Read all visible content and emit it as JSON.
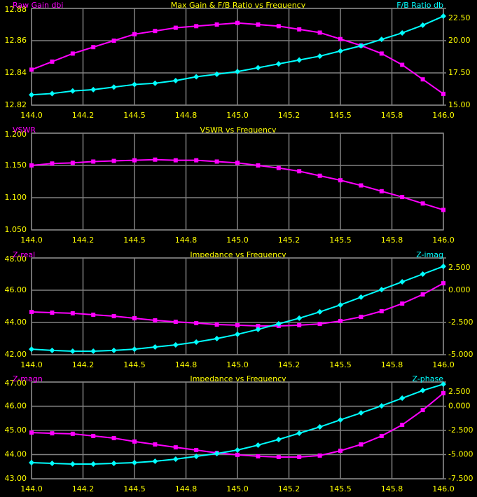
{
  "chart_data": [
    {
      "type": "line",
      "title": "Max Gain & F/B Ratio vs Frequency",
      "x": [
        144,
        144.1,
        144.2,
        144.3,
        144.4,
        144.5,
        144.6,
        144.7,
        144.8,
        144.9,
        145,
        145.1,
        145.2,
        145.3,
        145.4,
        145.5,
        145.6,
        145.7,
        145.8,
        145.9,
        146
      ],
      "xlim": [
        144,
        146
      ],
      "xticks": [
        {
          "value": 144,
          "label": "144.0"
        },
        {
          "value": 144.25,
          "label": "144.2"
        },
        144.5,
        {
          "value": 144.75,
          "label": "144.8"
        },
        {
          "value": 145,
          "label": "145.0"
        },
        {
          "value": 145.25,
          "label": "145.2"
        },
        145.5,
        {
          "value": 145.75,
          "label": "145.8"
        },
        {
          "value": 146,
          "label": "146.0"
        }
      ],
      "ylim": [
        12.82,
        12.88
      ],
      "yticks": [
        12.82,
        12.84,
        12.86,
        12.88
      ],
      "y2lim": [
        15,
        22.5
      ],
      "y2ticks": [
        {
          "value": 15,
          "label": "15.00"
        },
        {
          "value": 17.5,
          "label": "17.50"
        },
        {
          "value": 20,
          "label": "20.00"
        },
        {
          "value": 22.5,
          "label": "22.50"
        }
      ],
      "grid": true,
      "series": [
        {
          "name": "Raw Gain dbi",
          "color": "#ff00ff",
          "marker": "square",
          "values": [
            12.842,
            12.847,
            12.852,
            12.856,
            12.86,
            12.864,
            12.866,
            12.868,
            12.869,
            12.87,
            12.871,
            12.87,
            12.869,
            12.867,
            12.865,
            12.861,
            12.857,
            12.852,
            12.845,
            12.836,
            12.827
          ]
        },
        {
          "name": "F/B Ratio db",
          "color": "#00ffff",
          "marker": "diamond",
          "axis": "y2",
          "values": [
            15.8,
            15.9,
            16.1,
            16.2,
            16.4,
            16.6,
            16.7,
            16.9,
            17.2,
            17.4,
            17.6,
            17.9,
            18.2,
            18.5,
            18.8,
            19.2,
            19.6,
            20.1,
            20.6,
            21.2,
            21.9
          ]
        }
      ]
    },
    {
      "type": "line",
      "title": "VSWR vs Frequency",
      "x": [
        144,
        144.1,
        144.2,
        144.3,
        144.4,
        144.5,
        144.6,
        144.7,
        144.8,
        144.9,
        145,
        145.1,
        145.2,
        145.3,
        145.4,
        145.5,
        145.6,
        145.7,
        145.8,
        145.9,
        146
      ],
      "xlim": [
        144,
        146
      ],
      "xticks": [
        {
          "value": 144,
          "label": "144.0"
        },
        {
          "value": 144.25,
          "label": "144.2"
        },
        144.5,
        {
          "value": 144.75,
          "label": "144.8"
        },
        {
          "value": 145,
          "label": "145.0"
        },
        {
          "value": 145.25,
          "label": "145.2"
        },
        145.5,
        {
          "value": 145.75,
          "label": "145.8"
        },
        {
          "value": 146,
          "label": "146.0"
        }
      ],
      "ylim": [
        1.05,
        1.2
      ],
      "yticks": [
        {
          "value": 1.05,
          "label": "1.050"
        },
        {
          "value": 1.1,
          "label": "1.100"
        },
        {
          "value": 1.15,
          "label": "1.150"
        },
        {
          "value": 1.2,
          "label": "1.200"
        }
      ],
      "grid": true,
      "series": [
        {
          "name": "VSWR",
          "color": "#ff00ff",
          "marker": "square",
          "values": [
            1.15,
            1.153,
            1.154,
            1.156,
            1.157,
            1.158,
            1.159,
            1.158,
            1.158,
            1.156,
            1.154,
            1.15,
            1.146,
            1.141,
            1.134,
            1.127,
            1.119,
            1.11,
            1.101,
            1.091,
            1.081
          ]
        }
      ]
    },
    {
      "type": "line",
      "title": "Impedance vs Frequency",
      "x": [
        144,
        144.1,
        144.2,
        144.3,
        144.4,
        144.5,
        144.6,
        144.7,
        144.8,
        144.9,
        145,
        145.1,
        145.2,
        145.3,
        145.4,
        145.5,
        145.6,
        145.7,
        145.8,
        145.9,
        146
      ],
      "xlim": [
        144,
        146
      ],
      "xticks": [
        {
          "value": 144,
          "label": "144.0"
        },
        {
          "value": 144.25,
          "label": "144.2"
        },
        144.5,
        {
          "value": 144.75,
          "label": "144.8"
        },
        {
          "value": 145,
          "label": "145.0"
        },
        {
          "value": 145.25,
          "label": "145.2"
        },
        145.5,
        {
          "value": 145.75,
          "label": "145.8"
        },
        {
          "value": 146,
          "label": "146.0"
        }
      ],
      "ylim": [
        42,
        48
      ],
      "yticks": [
        {
          "value": 42,
          "label": "42.00"
        },
        {
          "value": 44,
          "label": "44.00"
        },
        {
          "value": 46,
          "label": "46.00"
        },
        {
          "value": 48,
          "label": "48.00"
        }
      ],
      "y2lim": [
        -5,
        2.5
      ],
      "y2ticks": [
        {
          "value": -5,
          "label": "-5.000"
        },
        {
          "value": -2.5,
          "label": "-2.500"
        },
        {
          "value": 0,
          "label": "0.000"
        },
        {
          "value": 2.5,
          "label": "2.500"
        }
      ],
      "grid": true,
      "series": [
        {
          "name": "Z-real",
          "color": "#ff00ff",
          "marker": "square",
          "values": [
            44.65,
            44.61,
            44.57,
            44.48,
            44.39,
            44.26,
            44.13,
            44.04,
            43.96,
            43.87,
            43.83,
            43.78,
            43.78,
            43.83,
            43.91,
            44.09,
            44.35,
            44.7,
            45.17,
            45.74,
            46.43
          ]
        },
        {
          "name": "Z-imag",
          "color": "#00ffff",
          "marker": "diamond",
          "axis": "y2",
          "values": [
            -4.57,
            -4.67,
            -4.73,
            -4.73,
            -4.67,
            -4.57,
            -4.4,
            -4.24,
            -4.02,
            -3.75,
            -3.42,
            -3.04,
            -2.61,
            -2.17,
            -1.68,
            -1.14,
            -0.54,
            0.05,
            0.65,
            1.25,
            1.85
          ]
        }
      ]
    },
    {
      "type": "line",
      "title": "Impedance vs Frequency",
      "x": [
        144,
        144.1,
        144.2,
        144.3,
        144.4,
        144.5,
        144.6,
        144.7,
        144.8,
        144.9,
        145,
        145.1,
        145.2,
        145.3,
        145.4,
        145.5,
        145.6,
        145.7,
        145.8,
        145.9,
        146
      ],
      "xlim": [
        144,
        146
      ],
      "xticks": [
        {
          "value": 144,
          "label": "144.0"
        },
        {
          "value": 144.25,
          "label": "144.2"
        },
        144.5,
        {
          "value": 144.75,
          "label": "144.8"
        },
        {
          "value": 145,
          "label": "145.0"
        },
        {
          "value": 145.25,
          "label": "145.2"
        },
        145.5,
        {
          "value": 145.75,
          "label": "145.8"
        },
        {
          "value": 146,
          "label": "146.0"
        }
      ],
      "ylim": [
        43,
        47
      ],
      "yticks": [
        {
          "value": 43,
          "label": "43.00"
        },
        {
          "value": 44,
          "label": "44.00"
        },
        {
          "value": 45,
          "label": "45.00"
        },
        {
          "value": 46,
          "label": "46.00"
        },
        {
          "value": 47,
          "label": "47.00"
        }
      ],
      "y2lim": [
        -7.5,
        2.5
      ],
      "y2ticks": [
        {
          "value": -7.5,
          "label": "-7.500"
        },
        {
          "value": -5,
          "label": "-5.000"
        },
        {
          "value": -2.5,
          "label": "-2.500"
        },
        {
          "value": 0,
          "label": "0.000"
        },
        {
          "value": 2.5,
          "label": "2.500"
        }
      ],
      "grid": true,
      "series": [
        {
          "name": "Z-magn",
          "color": "#ff00ff",
          "marker": "square",
          "values": [
            44.91,
            44.88,
            44.86,
            44.77,
            44.68,
            44.54,
            44.42,
            44.3,
            44.19,
            44.07,
            43.99,
            43.93,
            43.9,
            43.9,
            43.96,
            44.16,
            44.42,
            44.77,
            45.23,
            45.84,
            46.54
          ]
        },
        {
          "name": "Z-phase",
          "color": "#00ffff",
          "marker": "diamond",
          "axis": "y2",
          "values": [
            -5.83,
            -5.91,
            -5.98,
            -5.98,
            -5.91,
            -5.83,
            -5.69,
            -5.47,
            -5.18,
            -4.89,
            -4.53,
            -4.02,
            -3.44,
            -2.79,
            -2.14,
            -1.41,
            -0.69,
            0.04,
            0.83,
            1.63,
            2.28
          ]
        }
      ]
    }
  ]
}
